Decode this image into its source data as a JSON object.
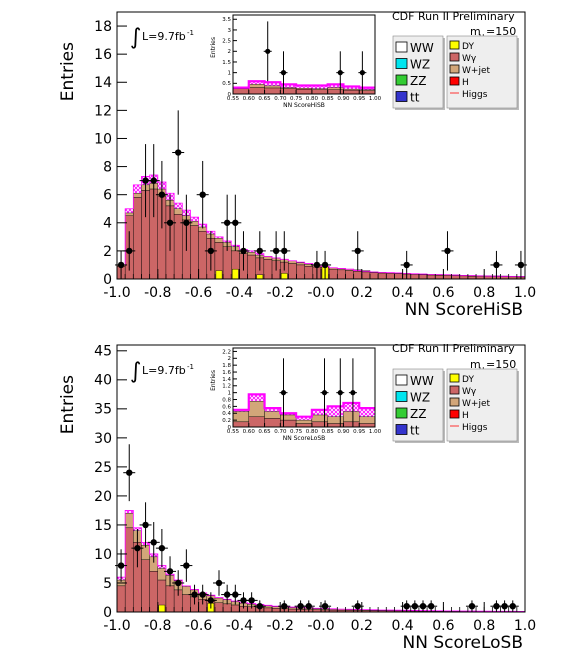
{
  "chart_data": [
    {
      "type": "bar",
      "title": "CDF Run II Preliminary",
      "xlabel": "NN ScoreHiSB",
      "ylabel": "Entries",
      "xlim": [
        -1.0,
        1.0
      ],
      "ylim": [
        0,
        19
      ],
      "xticks": [
        "-1.0",
        "-0.8",
        "-0.6",
        "-0.4",
        "-0.2",
        "-0.0",
        "0.2",
        "0.4",
        "0.6",
        "0.8",
        "1.0"
      ],
      "yticks": [
        "0",
        "2",
        "4",
        "6",
        "8",
        "10",
        "12",
        "14",
        "16",
        "18"
      ],
      "lumi_label": "L=9.7fb",
      "lumi_sup": "-1",
      "mass_label": "m",
      "mass_sub": "H",
      "mass_value": "=150",
      "legend_left": [
        "WW",
        "WZ",
        "ZZ",
        "tt"
      ],
      "legend_right": [
        "DY",
        "Wγ",
        "W+jet",
        "H",
        "Higgs"
      ],
      "bin_edges": [
        -1.0,
        -0.96,
        -0.92,
        -0.88,
        -0.84,
        -0.8,
        -0.76,
        -0.72,
        -0.68,
        -0.64,
        -0.6,
        -0.56,
        -0.52,
        -0.48,
        -0.44,
        -0.4,
        -0.36,
        -0.32,
        -0.28,
        -0.24,
        -0.2,
        -0.16,
        -0.12,
        -0.08,
        -0.04,
        0.0,
        0.04,
        0.08,
        0.12,
        0.16,
        0.2,
        0.24,
        0.28,
        0.32,
        0.36,
        0.4,
        0.44,
        0.48,
        0.52,
        0.56,
        0.6,
        0.64,
        0.68,
        0.72,
        0.76,
        0.8,
        0.84,
        0.88,
        0.92,
        0.96,
        1.0
      ],
      "series": [
        {
          "name": "WW",
          "values": [
            0.9,
            4.5,
            5.8,
            6.3,
            6.4,
            5.9,
            5.2,
            4.6,
            4.2,
            3.8,
            3.4,
            2.9,
            2.6,
            2.3,
            2.0,
            1.8,
            1.7,
            1.5,
            1.4,
            1.3,
            1.2,
            1.1,
            1.0,
            0.9,
            0.85,
            0.8,
            0.7,
            0.65,
            0.6,
            0.55,
            0.5,
            0.45,
            0.42,
            0.4,
            0.38,
            0.35,
            0.32,
            0.3,
            0.28,
            0.27,
            0.26,
            0.24,
            0.22,
            0.2,
            0.19,
            0.18,
            0.17,
            0.16,
            0.15,
            0.14
          ]
        },
        {
          "name": "W+jet",
          "values": [
            0.1,
            0.2,
            0.3,
            0.4,
            0.4,
            0.5,
            0.4,
            0.4,
            0.3,
            0.3,
            0.3,
            0.3,
            0.3,
            0.3,
            0.3,
            0.2,
            0.2,
            0.2,
            0.2,
            0.2,
            0.2,
            0.2,
            0.15,
            0.15,
            0.15,
            0.1,
            0.1,
            0.1,
            0.1,
            0.1,
            0.1,
            0.05,
            0.05,
            0.05,
            0.05,
            0.05,
            0.05,
            0.05,
            0.05,
            0.05,
            0.05,
            0.05,
            0.05,
            0.05,
            0.05,
            0.05,
            0.05,
            0.05,
            0.05,
            0.05
          ]
        },
        {
          "name": "DY",
          "values": [
            0.0,
            0.0,
            0.0,
            0.0,
            0.0,
            0.0,
            0.0,
            0.0,
            0.0,
            0.0,
            0.0,
            0.0,
            0.6,
            0.0,
            0.7,
            0.0,
            0.0,
            0.3,
            0.0,
            0.0,
            0.4,
            0.0,
            0.0,
            0.0,
            0.0,
            0.9,
            0.0,
            0.0,
            0.0,
            0.0,
            0.0,
            0.0,
            0.0,
            0.0,
            0.0,
            0.0,
            0.0,
            0.0,
            0.0,
            0.0,
            0.0,
            0.0,
            0.0,
            0.0,
            0.0,
            0.0,
            0.0,
            0.0,
            0.0,
            0.0
          ]
        },
        {
          "name": "Higgs",
          "values": [
            1.0,
            5.0,
            6.7,
            7.3,
            7.4,
            6.9,
            6.1,
            5.4,
            4.9,
            4.4,
            3.9,
            3.4,
            3.0,
            2.7,
            2.4,
            2.1,
            2.0,
            1.8,
            1.6,
            1.5,
            1.4,
            1.3,
            1.2,
            1.1,
            1.0,
            0.9,
            0.8,
            0.75,
            0.7,
            0.6,
            0.55,
            0.5,
            0.47,
            0.45,
            0.43,
            0.4,
            0.37,
            0.35,
            0.33,
            0.31,
            0.3,
            0.28,
            0.26,
            0.24,
            0.22,
            0.21,
            0.2,
            0.19,
            0.18,
            0.17
          ]
        }
      ],
      "data_points": [
        {
          "x": -0.98,
          "y": 1,
          "err": 1.0
        },
        {
          "x": -0.94,
          "y": 2,
          "err": 1.4
        },
        {
          "x": -0.86,
          "y": 7,
          "err": 2.6
        },
        {
          "x": -0.82,
          "y": 7,
          "err": 2.6
        },
        {
          "x": -0.78,
          "y": 6,
          "err": 2.4
        },
        {
          "x": -0.74,
          "y": 4,
          "err": 2.0
        },
        {
          "x": -0.7,
          "y": 9,
          "err": 3.0
        },
        {
          "x": -0.66,
          "y": 4,
          "err": 2.0
        },
        {
          "x": -0.58,
          "y": 6,
          "err": 2.4
        },
        {
          "x": -0.54,
          "y": 2,
          "err": 1.4
        },
        {
          "x": -0.46,
          "y": 4,
          "err": 2.0
        },
        {
          "x": -0.42,
          "y": 4,
          "err": 2.0
        },
        {
          "x": -0.38,
          "y": 2,
          "err": 1.4
        },
        {
          "x": -0.3,
          "y": 2,
          "err": 1.4
        },
        {
          "x": -0.22,
          "y": 2,
          "err": 1.4
        },
        {
          "x": -0.18,
          "y": 2,
          "err": 1.4
        },
        {
          "x": -0.02,
          "y": 1,
          "err": 1.0
        },
        {
          "x": 0.02,
          "y": 1,
          "err": 1.0
        },
        {
          "x": 0.18,
          "y": 2,
          "err": 1.4
        },
        {
          "x": 0.42,
          "y": 1,
          "err": 1.0
        },
        {
          "x": 0.62,
          "y": 2,
          "err": 1.4
        },
        {
          "x": 0.86,
          "y": 1,
          "err": 1.0
        },
        {
          "x": 0.98,
          "y": 1,
          "err": 1.0
        }
      ],
      "inset": {
        "xlabel": "NN ScoreHiSB",
        "ylabel": "Entries",
        "xlim": [
          0.55,
          1.0
        ],
        "ylim": [
          0,
          3.7
        ],
        "xticks": [
          "0.55",
          "0.60",
          "0.65",
          "0.70",
          "0.75",
          "0.80",
          "0.85",
          "0.90",
          "0.95",
          "1.00"
        ],
        "yticks": [
          "0",
          "0.5",
          "1",
          "1.5",
          "2",
          "2.5",
          "3",
          "3.5"
        ],
        "bin_edges": [
          0.55,
          0.6,
          0.65,
          0.7,
          0.75,
          0.8,
          0.85,
          0.9,
          0.95,
          1.0
        ],
        "series": [
          {
            "name": "WW",
            "values": [
              0.25,
              0.3,
              0.28,
              0.25,
              0.22,
              0.2,
              0.2,
              0.18,
              0.15
            ]
          },
          {
            "name": "W+jet",
            "values": [
              0.05,
              0.15,
              0.1,
              0.05,
              0.05,
              0.05,
              0.1,
              0.05,
              0.05
            ]
          },
          {
            "name": "Higgs",
            "values": [
              0.3,
              0.6,
              0.55,
              0.45,
              0.4,
              0.4,
              0.45,
              0.35,
              0.3
            ]
          }
        ],
        "data_points": [
          {
            "x": 0.66,
            "y": 2,
            "err": 1.4
          },
          {
            "x": 0.71,
            "y": 1,
            "err": 1.0
          },
          {
            "x": 0.89,
            "y": 1,
            "err": 1.0
          },
          {
            "x": 0.96,
            "y": 1,
            "err": 1.0
          }
        ]
      }
    },
    {
      "type": "bar",
      "title": "CDF Run II Preliminary",
      "xlabel": "NN ScoreLoSB",
      "ylabel": "Entries",
      "xlim": [
        -1.0,
        1.0
      ],
      "ylim": [
        0,
        46
      ],
      "xticks": [
        "-1.0",
        "-0.8",
        "-0.6",
        "-0.4",
        "-0.2",
        "-0.0",
        "0.2",
        "0.4",
        "0.6",
        "0.8",
        "1.0"
      ],
      "yticks": [
        "0",
        "5",
        "10",
        "15",
        "20",
        "25",
        "30",
        "35",
        "40",
        "45"
      ],
      "lumi_label": "L=9.7fb",
      "lumi_sup": "-1",
      "mass_label": "m",
      "mass_sub": "H",
      "mass_value": "=150",
      "legend_left": [
        "WW",
        "WZ",
        "ZZ",
        "tt"
      ],
      "legend_right": [
        "DY",
        "Wγ",
        "W+jet",
        "H",
        "Higgs"
      ],
      "bin_edges": [
        -1.0,
        -0.96,
        -0.92,
        -0.88,
        -0.84,
        -0.8,
        -0.76,
        -0.72,
        -0.68,
        -0.64,
        -0.6,
        -0.56,
        -0.52,
        -0.48,
        -0.44,
        -0.4,
        -0.36,
        -0.32,
        -0.28,
        -0.24,
        -0.2,
        -0.16,
        -0.12,
        -0.08,
        -0.04,
        0.0,
        0.04,
        0.08,
        0.12,
        0.16,
        0.2,
        0.24,
        0.28,
        0.32,
        0.36,
        0.4,
        0.44,
        0.48,
        0.52,
        0.56,
        0.6,
        0.64,
        0.68,
        0.72,
        0.76,
        0.8,
        0.84,
        0.88,
        0.92,
        0.96,
        1.0
      ],
      "series": [
        {
          "name": "WW",
          "values": [
            4.5,
            14.5,
            12.0,
            9.0,
            7.0,
            5.5,
            4.5,
            3.8,
            3.0,
            2.6,
            2.2,
            1.9,
            1.6,
            1.4,
            1.2,
            1.0,
            0.9,
            0.8,
            0.7,
            0.6,
            0.55,
            0.5,
            0.45,
            0.4,
            0.38,
            0.35,
            0.32,
            0.3,
            0.28,
            0.26,
            0.24,
            0.22,
            0.2,
            0.19,
            0.18,
            0.17,
            0.16,
            0.15,
            0.14,
            0.13,
            0.12,
            0.11,
            0.1,
            0.1,
            0.09,
            0.09,
            0.08,
            0.08,
            0.07,
            0.07
          ]
        },
        {
          "name": "W+jet",
          "values": [
            1.0,
            2.5,
            2.0,
            2.5,
            2.5,
            2.0,
            1.8,
            1.6,
            1.4,
            1.2,
            1.0,
            0.9,
            0.8,
            0.7,
            0.6,
            0.5,
            0.45,
            0.4,
            0.35,
            0.3,
            0.28,
            0.26,
            0.24,
            0.22,
            0.2,
            0.18,
            0.16,
            0.15,
            0.14,
            0.13,
            0.12,
            0.11,
            0.1,
            0.1,
            0.09,
            0.09,
            0.08,
            0.08,
            0.07,
            0.07,
            0.06,
            0.06,
            0.05,
            0.05,
            0.05,
            0.05,
            0.04,
            0.04,
            0.04,
            0.04
          ]
        },
        {
          "name": "DY",
          "values": [
            0.0,
            0.0,
            0.0,
            0.0,
            0.0,
            1.2,
            0.0,
            0.0,
            0.0,
            0.0,
            0.0,
            1.5,
            0.0,
            0.0,
            0.0,
            0.0,
            0.0,
            0.0,
            0.0,
            0.0,
            0.0,
            0.0,
            0.0,
            0.0,
            0.0,
            0.0,
            0.0,
            0.0,
            0.0,
            0.0,
            0.0,
            0.0,
            0.0,
            0.0,
            0.0,
            0.0,
            0.0,
            0.0,
            0.0,
            0.0,
            0.0,
            0.0,
            0.0,
            0.0,
            0.0,
            0.0,
            0.0,
            0.0,
            0.0,
            0.0
          ]
        },
        {
          "name": "Higgs",
          "values": [
            6.0,
            17.5,
            14.5,
            12.0,
            10.0,
            8.0,
            6.5,
            5.5,
            4.5,
            3.9,
            3.3,
            2.9,
            2.5,
            2.2,
            1.9,
            1.6,
            1.45,
            1.3,
            1.15,
            1.0,
            0.9,
            0.85,
            0.78,
            0.7,
            0.65,
            0.6,
            0.55,
            0.5,
            0.47,
            0.44,
            0.41,
            0.38,
            0.35,
            0.33,
            0.31,
            0.29,
            0.27,
            0.25,
            0.23,
            0.22,
            0.2,
            0.19,
            0.17,
            0.16,
            0.15,
            0.14,
            0.13,
            0.12,
            0.12,
            0.11
          ]
        }
      ],
      "data_points": [
        {
          "x": -0.98,
          "y": 8,
          "err": 2.8
        },
        {
          "x": -0.94,
          "y": 24,
          "err": 4.9
        },
        {
          "x": -0.9,
          "y": 11,
          "err": 3.3
        },
        {
          "x": -0.86,
          "y": 15,
          "err": 3.9
        },
        {
          "x": -0.82,
          "y": 12,
          "err": 3.5
        },
        {
          "x": -0.78,
          "y": 11,
          "err": 3.3
        },
        {
          "x": -0.74,
          "y": 7,
          "err": 2.6
        },
        {
          "x": -0.7,
          "y": 5,
          "err": 2.2
        },
        {
          "x": -0.66,
          "y": 8,
          "err": 2.8
        },
        {
          "x": -0.62,
          "y": 3,
          "err": 1.7
        },
        {
          "x": -0.58,
          "y": 3,
          "err": 1.7
        },
        {
          "x": -0.54,
          "y": 2,
          "err": 1.4
        },
        {
          "x": -0.5,
          "y": 5,
          "err": 2.2
        },
        {
          "x": -0.46,
          "y": 3,
          "err": 1.7
        },
        {
          "x": -0.42,
          "y": 3,
          "err": 1.7
        },
        {
          "x": -0.38,
          "y": 2,
          "err": 1.4
        },
        {
          "x": -0.34,
          "y": 2,
          "err": 1.4
        },
        {
          "x": -0.3,
          "y": 1,
          "err": 1.0
        },
        {
          "x": -0.18,
          "y": 1,
          "err": 1.0
        },
        {
          "x": -0.1,
          "y": 1,
          "err": 1.0
        },
        {
          "x": -0.06,
          "y": 1,
          "err": 1.0
        },
        {
          "x": 0.02,
          "y": 1,
          "err": 1.0
        },
        {
          "x": 0.18,
          "y": 1,
          "err": 1.0
        },
        {
          "x": 0.42,
          "y": 1,
          "err": 1.0
        },
        {
          "x": 0.46,
          "y": 1,
          "err": 1.0
        },
        {
          "x": 0.5,
          "y": 1,
          "err": 1.0
        },
        {
          "x": 0.54,
          "y": 1,
          "err": 1.0
        },
        {
          "x": 0.74,
          "y": 1,
          "err": 1.0
        },
        {
          "x": 0.86,
          "y": 1,
          "err": 1.0
        },
        {
          "x": 0.9,
          "y": 1,
          "err": 1.0
        },
        {
          "x": 0.94,
          "y": 1,
          "err": 1.0
        }
      ],
      "inset": {
        "xlabel": "NN ScoreLoSB",
        "ylabel": "Entries",
        "xlim": [
          0.55,
          1.0
        ],
        "ylim": [
          0,
          2.3
        ],
        "xticks": [
          "0.55",
          "0.60",
          "0.65",
          "0.70",
          "0.75",
          "0.80",
          "0.85",
          "0.90",
          "0.95",
          "1.00"
        ],
        "yticks": [
          "0",
          "0.2",
          "0.4",
          "0.6",
          "0.8",
          "1",
          "1.2",
          "1.4",
          "1.6",
          "1.8",
          "2",
          "2.2"
        ],
        "bin_edges": [
          0.55,
          0.6,
          0.65,
          0.7,
          0.75,
          0.8,
          0.85,
          0.9,
          0.95,
          1.0
        ],
        "series": [
          {
            "name": "WW",
            "values": [
              0.15,
              0.3,
              0.25,
              0.2,
              0.1,
              0.15,
              0.1,
              0.15,
              0.1
            ]
          },
          {
            "name": "W+jet",
            "values": [
              0.3,
              0.45,
              0.2,
              0.15,
              0.1,
              0.2,
              0.2,
              0.3,
              0.2
            ]
          },
          {
            "name": "Higgs",
            "values": [
              0.5,
              0.95,
              0.55,
              0.4,
              0.3,
              0.5,
              0.6,
              0.7,
              0.55
            ]
          }
        ],
        "data_points": [
          {
            "x": 0.71,
            "y": 1,
            "err": 1.0
          },
          {
            "x": 0.84,
            "y": 1,
            "err": 1.0
          },
          {
            "x": 0.89,
            "y": 1,
            "err": 1.0
          },
          {
            "x": 0.93,
            "y": 1,
            "err": 1.0
          }
        ]
      }
    }
  ],
  "colors": {
    "WW": "#ffffff",
    "WZ": "#00e5ee",
    "ZZ": "#33cc33",
    "tt": "#3333cc",
    "DY": "#ffff00",
    "Wgamma": "#cc6666",
    "Wjet": "#d2a679",
    "H": "#ff0000",
    "Higgs": "#ff00ff",
    "mc_fill": "#cc6666",
    "data": "#000000"
  }
}
